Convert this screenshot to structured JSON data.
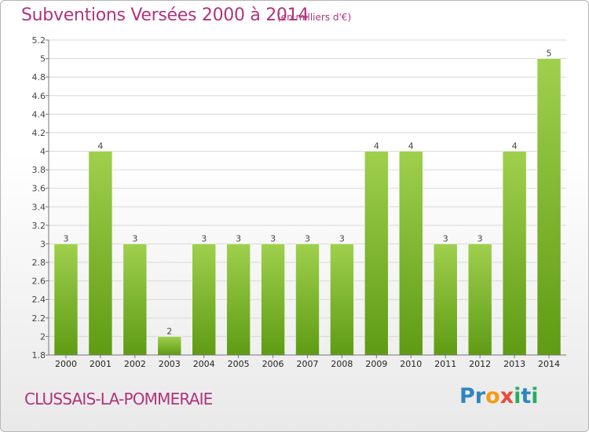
{
  "title": "Subventions Versées 2000 à 2014",
  "subtitle": "(en milliers d'€)",
  "commune": "CLUSSAIS-LA-POMMERAIE",
  "logo": {
    "text": "Proxiti",
    "letter_colors": [
      "#2e86c1",
      "#2e86c1",
      "#f39c12",
      "#e74c3c",
      "#27ae60",
      "#2e86c1",
      "#27ae60"
    ]
  },
  "colors": {
    "title": "#b0337c",
    "bar_top": "#9fd04d",
    "bar_bottom": "#5f9b14",
    "grid": "#d8d8d8",
    "axis": "#777777"
  },
  "chart_data": {
    "type": "bar",
    "title": "Subventions Versées 2000 à 2014",
    "subtitle": "(en milliers d'€)",
    "categories": [
      "2000",
      "2001",
      "2002",
      "2003",
      "2004",
      "2005",
      "2006",
      "2007",
      "2008",
      "2009",
      "2010",
      "2011",
      "2012",
      "2013",
      "2014"
    ],
    "values": [
      3,
      4,
      3,
      2,
      3,
      3,
      3,
      3,
      3,
      4,
      4,
      3,
      3,
      4,
      5
    ],
    "data_labels": [
      "3",
      "4",
      "3",
      "2",
      "3",
      "3",
      "3",
      "3",
      "3",
      "4",
      "4",
      "3",
      "3",
      "4",
      "5"
    ],
    "ylim": [
      1.8,
      5.2
    ],
    "yticks": [
      "1.8",
      "2",
      "2.2",
      "2.4",
      "2.6",
      "2.8",
      "3",
      "3.2",
      "3.4",
      "3.6",
      "3.8",
      "4",
      "4.2",
      "4.4",
      "4.6",
      "4.8",
      "5",
      "5.2"
    ],
    "xlabel": "",
    "ylabel": "",
    "grid": true,
    "legend": "none"
  }
}
